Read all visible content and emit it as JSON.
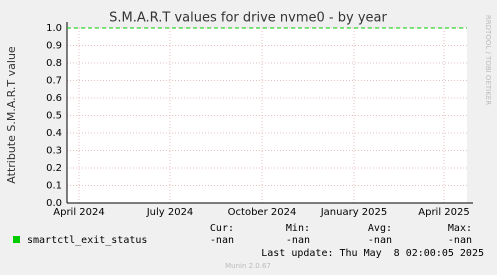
{
  "chart_data": {
    "type": "line",
    "title": "S.M.A.R.T values for drive nvme0 - by year",
    "y_label": "Attribute S.M.A.R.T value",
    "x": [
      "2024-03-20",
      "2025-04-24"
    ],
    "series": [
      {
        "name": "smartctl_exit_status",
        "color": "#00cc00",
        "values": [
          1,
          1
        ]
      }
    ],
    "xlim": [
      "2024-03-20",
      "2025-04-24"
    ],
    "xticks": [
      {
        "value": "2024-04-01",
        "label": "April 2024"
      },
      {
        "value": "2024-07-01",
        "label": "July 2024"
      },
      {
        "value": "2024-10-01",
        "label": "October 2024"
      },
      {
        "value": "2025-01-01",
        "label": "January 2025"
      },
      {
        "value": "2025-04-01",
        "label": "April 2025"
      }
    ],
    "ylim": [
      0,
      1
    ],
    "yticks": [
      {
        "value": 0,
        "label": "0.0"
      },
      0.1,
      0.2,
      0.3,
      0.4,
      0.5,
      0.6,
      0.7,
      0.8,
      0.9,
      {
        "value": 1,
        "label": "1.0"
      }
    ],
    "grid": true,
    "stats_headers": [
      "Cur:",
      "Min:",
      "Avg:",
      "Max:"
    ],
    "stats": [
      "-nan",
      "-nan",
      "-nan",
      "-nan"
    ],
    "last_update": "Last update: Thu May  8 02:00:05 2025",
    "side_text": "RRDTOOL / TOBI OETIKER",
    "footer": "Munin 2.0.67"
  }
}
